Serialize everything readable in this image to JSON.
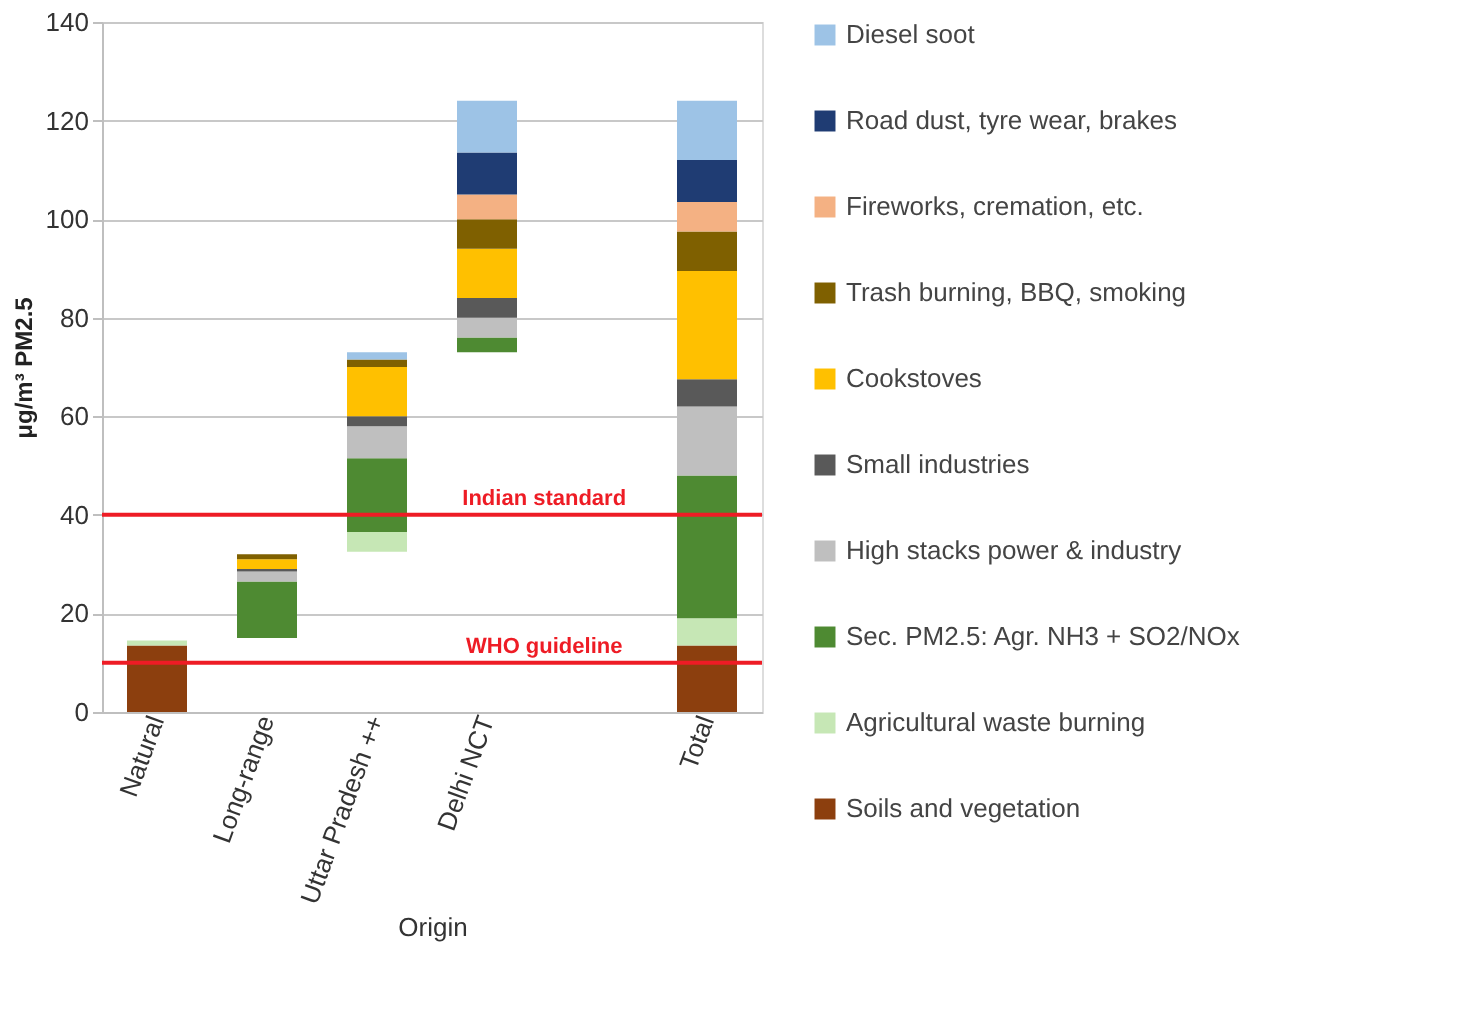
{
  "chart_data": {
    "type": "bar",
    "xlabel": "Origin",
    "ylabel": "μg/m³ PM2.5",
    "categories": [
      "Natural",
      "Long-range",
      "Uttar Pradesh ++",
      "Delhi NCT",
      null,
      "Total"
    ],
    "series": [
      {
        "name": "Soils and vegetation",
        "color": "#8c3f0e",
        "values": [
          13.5,
          null,
          null,
          null,
          null,
          13.5
        ],
        "base": [
          0,
          null,
          null,
          null,
          null,
          0
        ]
      },
      {
        "name": "Agricultural waste burning",
        "color": "#c6e7b5",
        "values": [
          1,
          null,
          4,
          null,
          null,
          5.5
        ],
        "base": [
          13.5,
          null,
          32.5,
          null,
          null,
          13.5
        ]
      },
      {
        "name": "Sec. PM2.5: Agr. NH3 + SO2/NOx",
        "color": "#4e8a32",
        "values": [
          null,
          11.5,
          15,
          3,
          null,
          29
        ],
        "base": [
          null,
          15,
          36.5,
          73,
          null,
          19
        ]
      },
      {
        "name": "High stacks power & industry",
        "color": "#bfbfbf",
        "values": [
          null,
          2,
          6.5,
          4,
          null,
          14
        ],
        "base": [
          null,
          26.5,
          51.5,
          76,
          null,
          48
        ]
      },
      {
        "name": "Small industries",
        "color": "#595959",
        "values": [
          null,
          0.5,
          2,
          4,
          null,
          5.5
        ],
        "base": [
          null,
          28.5,
          58,
          80,
          null,
          62
        ]
      },
      {
        "name": "Cookstoves",
        "color": "#ffc000",
        "values": [
          null,
          2,
          10,
          10,
          null,
          22
        ],
        "base": [
          null,
          29,
          60,
          84,
          null,
          67.5
        ]
      },
      {
        "name": "Trash burning, BBQ, smoking",
        "color": "#7f6000",
        "values": [
          null,
          1,
          1.5,
          6,
          null,
          8
        ],
        "base": [
          null,
          31,
          70,
          94,
          null,
          89.5
        ]
      },
      {
        "name": "Fireworks, cremation, etc.",
        "color": "#f4b183",
        "values": [
          null,
          null,
          null,
          5,
          null,
          6
        ],
        "base": [
          null,
          null,
          null,
          100,
          null,
          97.5
        ]
      },
      {
        "name": "Road dust, tyre wear, brakes",
        "color": "#1f3c73",
        "values": [
          null,
          null,
          null,
          8.5,
          null,
          8.5
        ],
        "base": [
          null,
          null,
          null,
          105,
          null,
          103.5
        ]
      },
      {
        "name": "Diesel soot",
        "color": "#9dc3e6",
        "values": [
          null,
          null,
          1.5,
          10.5,
          null,
          12
        ],
        "base": [
          null,
          null,
          71.5,
          113.5,
          null,
          112
        ]
      }
    ],
    "ylim": [
      0,
      140
    ],
    "yticks": [
      0,
      20,
      40,
      60,
      80,
      100,
      120,
      140
    ],
    "grid": "y",
    "legend": "right",
    "ref_lines": [
      {
        "axis": "y",
        "value": 40,
        "label": "Indian standard",
        "color": "#ee1c25"
      },
      {
        "axis": "y",
        "value": 10,
        "label": "WHO guideline",
        "color": "#ee1c25"
      }
    ]
  }
}
